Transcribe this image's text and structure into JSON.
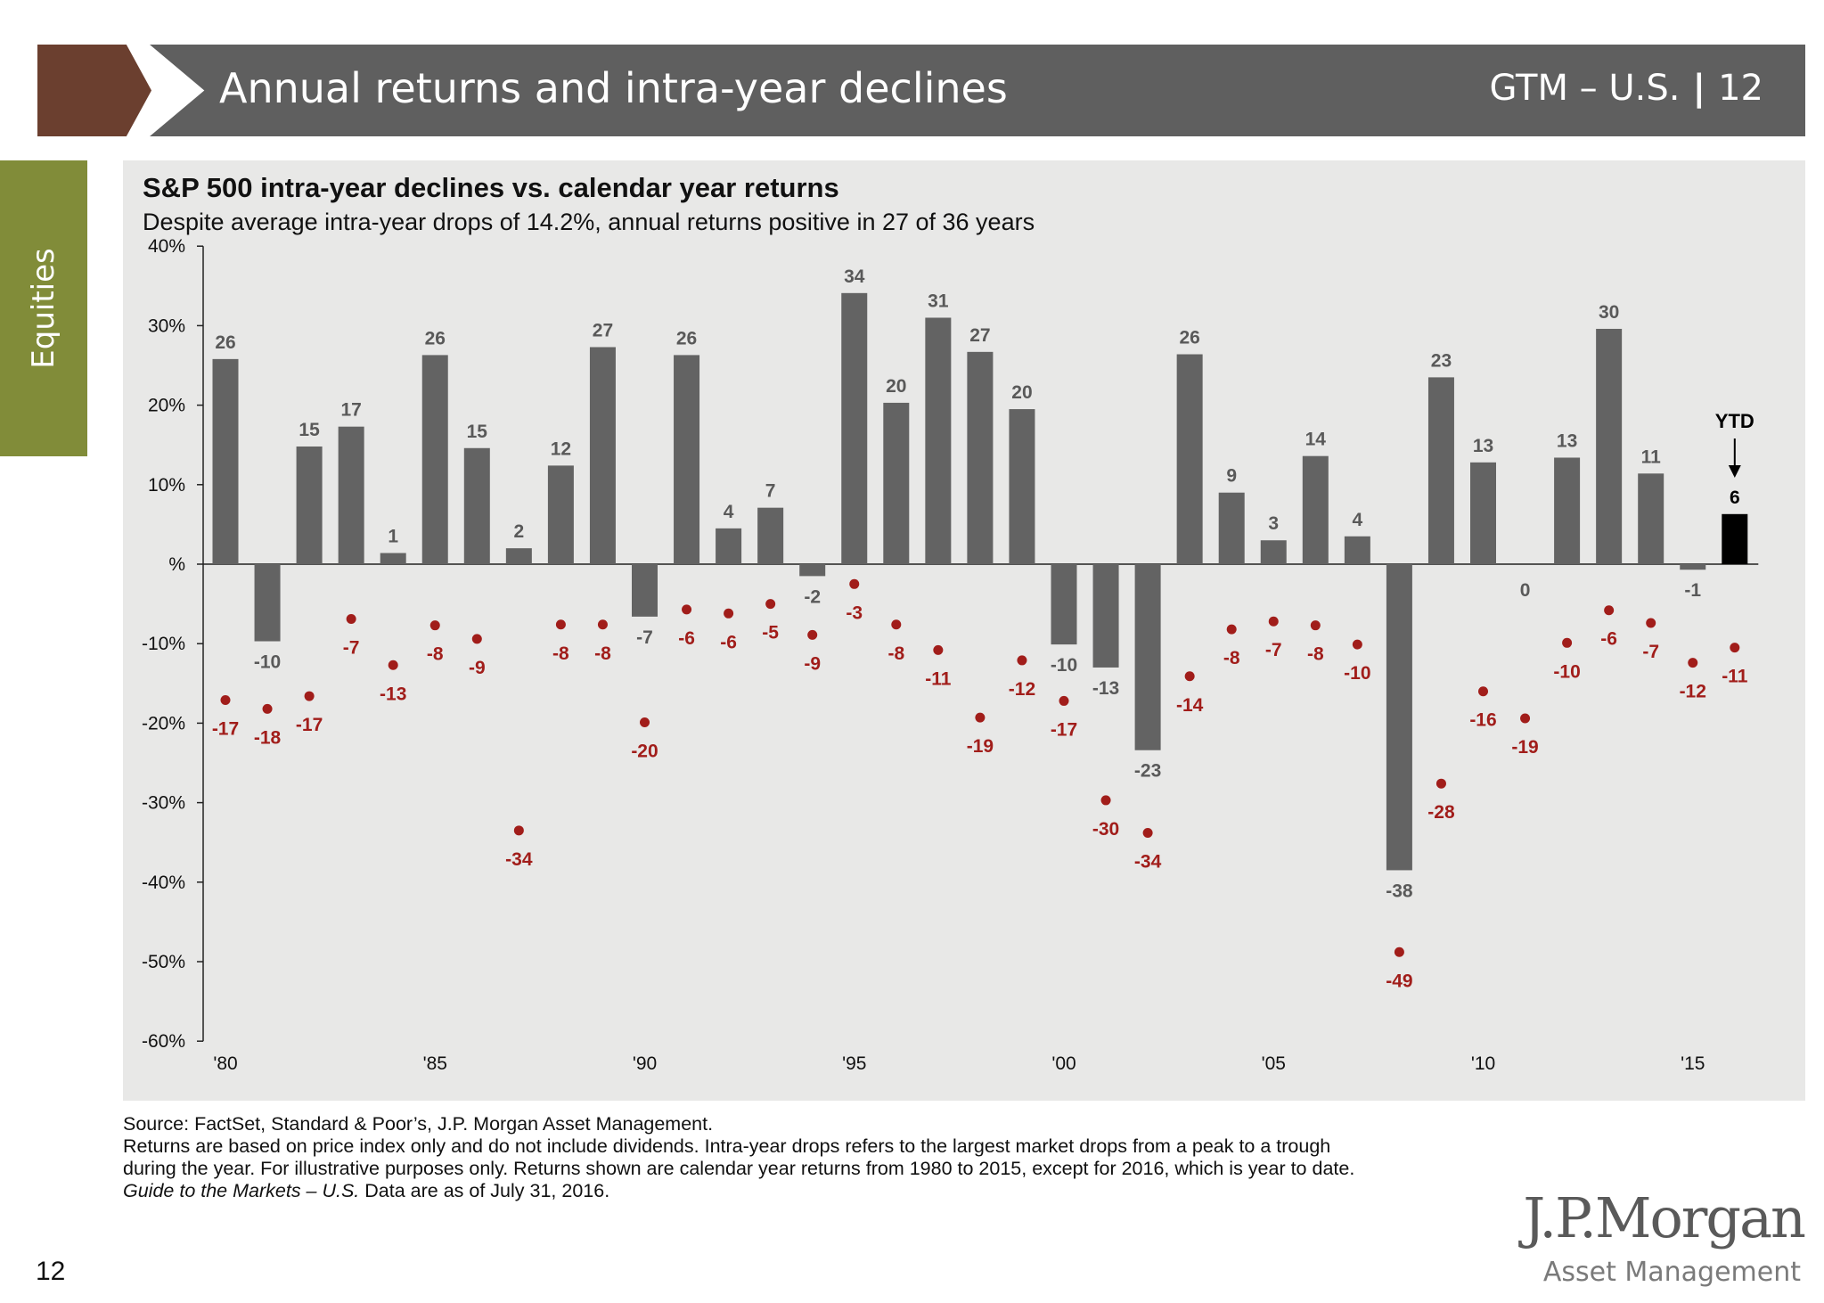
{
  "header": {
    "title": "Annual returns and intra-year declines",
    "section": "GTM – U.S.",
    "page": "12"
  },
  "side_tab": {
    "label": "Equities"
  },
  "footer": {
    "source": "Source: FactSet, Standard & Poor’s, J.P. Morgan Asset Management.",
    "note_line1": "Returns are based on price index only and do not include dividends. Intra-year drops refers to the largest market drops from a peak to a trough",
    "note_line2": "during the year. For illustrative purposes only. Returns shown are calendar year returns from 1980 to 2015, except for 2016, which is year to date.",
    "guide_name": "Guide to the Markets – U.S.",
    "data_date": " Data are as of July 31, 2016.",
    "page_number": "12"
  },
  "logo": {
    "name": "J.P.Morgan",
    "tagline": "Asset Management"
  },
  "colors": {
    "bar": "#636363",
    "ytd_bar": "#000000",
    "decline_dot": "#a11d1a",
    "decline_label": "#a11d1a",
    "bar_label": "#595959",
    "panel": "#e8e8e7",
    "header": "#5f5f5f",
    "header_accent": "#6b3f2f",
    "side_tab": "#818c39"
  },
  "chart_data": {
    "type": "bar",
    "title": "S&P 500 intra-year declines vs. calendar year returns",
    "subtitle": "Despite average intra-year drops of 14.2%, annual returns positive in 27 of 36 years",
    "x": [
      1980,
      1981,
      1982,
      1983,
      1984,
      1985,
      1986,
      1987,
      1988,
      1989,
      1990,
      1991,
      1992,
      1993,
      1994,
      1995,
      1996,
      1997,
      1998,
      1999,
      2000,
      2001,
      2002,
      2003,
      2004,
      2005,
      2006,
      2007,
      2008,
      2009,
      2010,
      2011,
      2012,
      2013,
      2014,
      2015,
      2016
    ],
    "xticks": [
      "'80",
      "'85",
      "'90",
      "'95",
      "'00",
      "'05",
      "'10",
      "'15"
    ],
    "xtick_years": [
      1980,
      1985,
      1990,
      1995,
      2000,
      2005,
      2010,
      2015
    ],
    "ylim": [
      -60,
      40
    ],
    "yticks": [
      "40%",
      "30%",
      "20%",
      "10%",
      "%",
      "-10%",
      "-20%",
      "-30%",
      "-40%",
      "-50%",
      "-60%"
    ],
    "ytick_values": [
      40,
      30,
      20,
      10,
      0,
      -10,
      -20,
      -30,
      -40,
      -50,
      -60
    ],
    "series": [
      {
        "type": "bar",
        "values": [
          25.8,
          -9.7,
          14.8,
          17.3,
          1.4,
          26.3,
          14.6,
          2.0,
          12.4,
          27.3,
          -6.6,
          26.3,
          4.5,
          7.1,
          -1.5,
          34.1,
          20.3,
          31.0,
          26.7,
          19.5,
          -10.1,
          -13.0,
          -23.4,
          26.4,
          9.0,
          3.0,
          13.6,
          3.5,
          -38.5,
          23.5,
          12.8,
          0.0,
          13.4,
          29.6,
          11.4,
          -0.7,
          6.3
        ],
        "labels": [
          "26",
          "-10",
          "15",
          "17",
          "1",
          "26",
          "15",
          "2",
          "12",
          "27",
          "-7",
          "26",
          "4",
          "7",
          "-2",
          "34",
          "20",
          "31",
          "27",
          "20",
          "-10",
          "-13",
          "-23",
          "26",
          "9",
          "3",
          "14",
          "4",
          "-38",
          "23",
          "13",
          "0",
          "13",
          "30",
          "11",
          "-1",
          "6"
        ]
      },
      {
        "type": "scatter",
        "values": [
          -17.1,
          -18.2,
          -16.6,
          -6.9,
          -12.7,
          -7.7,
          -9.4,
          -33.5,
          -7.6,
          -7.6,
          -19.9,
          -5.7,
          -6.2,
          -5.0,
          -8.9,
          -2.5,
          -7.6,
          -10.8,
          -19.3,
          -12.1,
          -17.2,
          -29.7,
          -33.8,
          -14.1,
          -8.2,
          -7.2,
          -7.7,
          -10.1,
          -48.8,
          -27.6,
          -16.0,
          -19.4,
          -9.9,
          -5.8,
          -7.4,
          -12.4,
          -10.5
        ],
        "labels": [
          "-17",
          "-18",
          "-17",
          "-7",
          "-13",
          "-8",
          "-9",
          "-34",
          "-8",
          "-8",
          "-20",
          "-6",
          "-6",
          "-5",
          "-9",
          "-3",
          "-8",
          "-11",
          "-19",
          "-12",
          "-17",
          "-30",
          "-34",
          "-14",
          "-8",
          "-7",
          "-8",
          "-10",
          "-49",
          "-28",
          "-16",
          "-19",
          "-10",
          "-6",
          "-7",
          "-12",
          "-11"
        ]
      }
    ],
    "annotation": "YTD"
  }
}
